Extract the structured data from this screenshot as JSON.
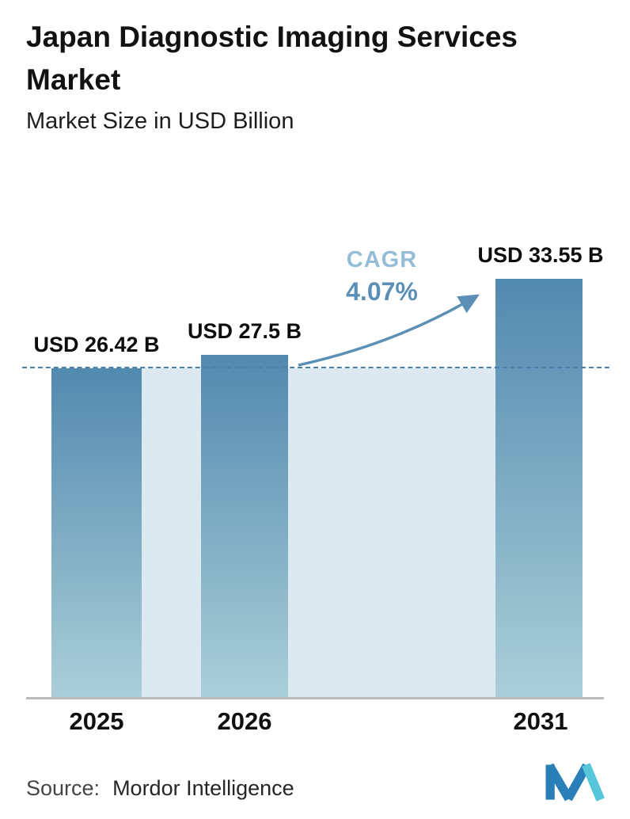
{
  "header": {
    "title": "Japan Diagnostic Imaging Services Market",
    "subtitle": "Market Size in USD Billion"
  },
  "chart_data": {
    "type": "bar",
    "title": "Japan Diagnostic Imaging Services Market",
    "subtitle": "Market Size in USD Billion",
    "categories": [
      "2025",
      "2026",
      "2031"
    ],
    "values": [
      26.42,
      27.5,
      33.55
    ],
    "value_labels": [
      "USD 26.42 B",
      "USD 27.5 B",
      "USD 33.55 B"
    ],
    "unit": "USD Billion",
    "ylim": [
      0,
      33.55
    ],
    "grid": "off",
    "legend": "none",
    "annotations": {
      "cagr_label": "CAGR",
      "cagr_value": "4.07%",
      "dashed_reference_level": 26.42
    },
    "colors": {
      "bar_top": "#5289af",
      "bar_bottom": "#aacfd8",
      "plot_fill": "#dde9f1",
      "dashed_line": "#4a80ad",
      "cagr_label": "#94bdd7",
      "cagr_value": "#5b8fb5",
      "arrow": "#5b8fb5"
    }
  },
  "footer": {
    "source_label": "Source:",
    "source_name": "Mordor Intelligence",
    "logo": "mordor-intelligence-logo"
  }
}
